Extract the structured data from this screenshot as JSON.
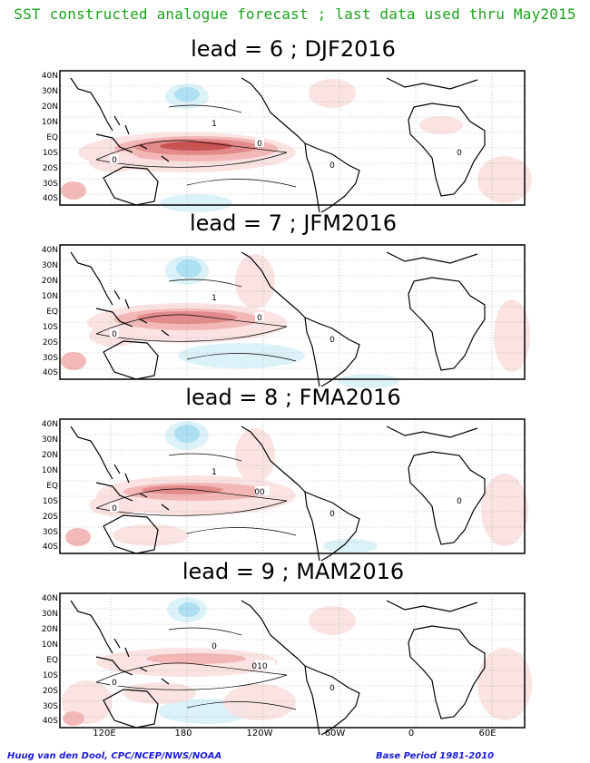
{
  "header": {
    "title": "SST constructed analogue forecast ; last data used thru May2015"
  },
  "chart_data": [
    {
      "type": "heatmap",
      "title": "lead = 6 ; DJF2016",
      "contour_labels": [
        "0",
        "1",
        "0",
        "0",
        "0"
      ],
      "ylabels": [
        "40N",
        "30N",
        "20N",
        "10N",
        "EQ",
        "10S",
        "20S",
        "30S",
        "40S"
      ],
      "xlabels": [
        "120E",
        "180",
        "120W",
        "60W",
        "0",
        "60E"
      ]
    },
    {
      "type": "heatmap",
      "title": "lead = 7 ; JFM2016",
      "contour_labels": [
        "0",
        "1",
        "0",
        "0"
      ],
      "ylabels": [
        "40N",
        "30N",
        "20N",
        "10N",
        "EQ",
        "10S",
        "20S",
        "30S",
        "40S"
      ],
      "xlabels": [
        "120E",
        "180",
        "120W",
        "60W",
        "0",
        "60E"
      ]
    },
    {
      "type": "heatmap",
      "title": "lead = 8 ; FMA2016",
      "contour_labels": [
        "00",
        "1",
        "0",
        "0",
        "0"
      ],
      "ylabels": [
        "40N",
        "30N",
        "20N",
        "10N",
        "EQ",
        "10S",
        "20S",
        "30S",
        "40S"
      ],
      "xlabels": [
        "120E",
        "180",
        "120W",
        "60W",
        "0",
        "60E"
      ]
    },
    {
      "type": "heatmap",
      "title": "lead = 9 ; MAM2016",
      "contour_labels": [
        "010",
        "0",
        "0",
        "0"
      ],
      "ylabels": [
        "40N",
        "30N",
        "20N",
        "10N",
        "EQ",
        "10S",
        "20S",
        "30S",
        "40S"
      ],
      "xlabels": [
        "120E",
        "180",
        "120W",
        "60W",
        "0",
        "60E"
      ]
    }
  ],
  "footer": {
    "left": "Huug van den Dool, CPC/NCEP/NWS/NOAA",
    "right": "Base Period 1981-2010"
  },
  "colors": {
    "title": "#1ca31c",
    "footer": "#1b1bd6",
    "warm_light": "#fbe1e1",
    "warm_mid": "#f2b3b3",
    "warm_strong": "#e28787",
    "warm_max": "#c84c4c",
    "cool_light": "#d9f1f8",
    "cool_mid": "#a8def2",
    "cool_strong": "#7cc2ea"
  }
}
